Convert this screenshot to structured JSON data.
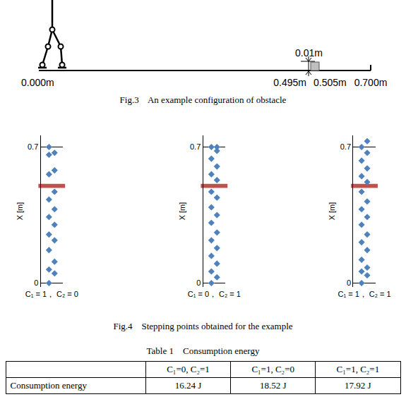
{
  "figure3": {
    "caption": "Fig.3    An example configuration of obstacle",
    "labels": {
      "start": "0.000m",
      "obstacle_height": "0.01m",
      "obstacle_start": "0.495m",
      "obstacle_end": "0.505m",
      "end": "0.700m"
    }
  },
  "chart_data": [
    {
      "type": "scatter",
      "xlabel": "C₁ = 1， C₂ = 0",
      "ylabel": "X [m]",
      "values": [
        0.0,
        0.05,
        0.07,
        0.11,
        0.17,
        0.22,
        0.25,
        0.3,
        0.34,
        0.38,
        0.43,
        0.47,
        0.56,
        0.58,
        0.66,
        0.67,
        0.7
      ],
      "ylim": [
        -0.02,
        0.76
      ],
      "yticks": [
        0,
        0.7
      ],
      "obstacle": [
        0.495,
        0.505
      ],
      "color": "#4f81bd",
      "marker": "diamond",
      "grid": true,
      "tick_labels": "y"
    },
    {
      "type": "scatter",
      "xlabel": "C₁ = 0， C₂ = 1",
      "ylabel": "X [m]",
      "values": [
        0.0,
        0.03,
        0.06,
        0.1,
        0.14,
        0.18,
        0.22,
        0.26,
        0.31,
        0.35,
        0.39,
        0.44,
        0.47,
        0.53,
        0.56,
        0.6,
        0.64,
        0.68,
        0.7,
        0.7
      ],
      "ylim": [
        -0.02,
        0.76
      ],
      "yticks": [
        0,
        0.7
      ],
      "obstacle": [
        0.495,
        0.505
      ],
      "color": "#4f81bd",
      "marker": "diamond",
      "grid": true,
      "tick_labels": "y"
    },
    {
      "type": "scatter",
      "xlabel": "C₁ = 1， C₂ = 1",
      "ylabel": "X [m]",
      "values": [
        0.0,
        0.04,
        0.06,
        0.08,
        0.12,
        0.17,
        0.21,
        0.25,
        0.3,
        0.34,
        0.38,
        0.42,
        0.47,
        0.52,
        0.55,
        0.59,
        0.63,
        0.67,
        0.7,
        0.73
      ],
      "ylim": [
        -0.02,
        0.76
      ],
      "yticks": [
        0,
        0.7
      ],
      "obstacle": [
        0.495,
        0.505
      ],
      "color": "#4f81bd",
      "marker": "diamond",
      "grid": true,
      "tick_labels": "y"
    }
  ],
  "figure4": {
    "caption": "Fig.4    Stepping points obtained for the example"
  },
  "table1": {
    "caption": "Table 1    Consumption energy",
    "columns": [
      "C₁=0,  C₂=1",
      "C₁=1,  C₂=0",
      "C₁=1,  C₂=1"
    ],
    "rows": [
      {
        "label": "Consumption energy",
        "cells": [
          "16.24 J",
          "18.52 J",
          "17.92 J"
        ]
      }
    ]
  }
}
